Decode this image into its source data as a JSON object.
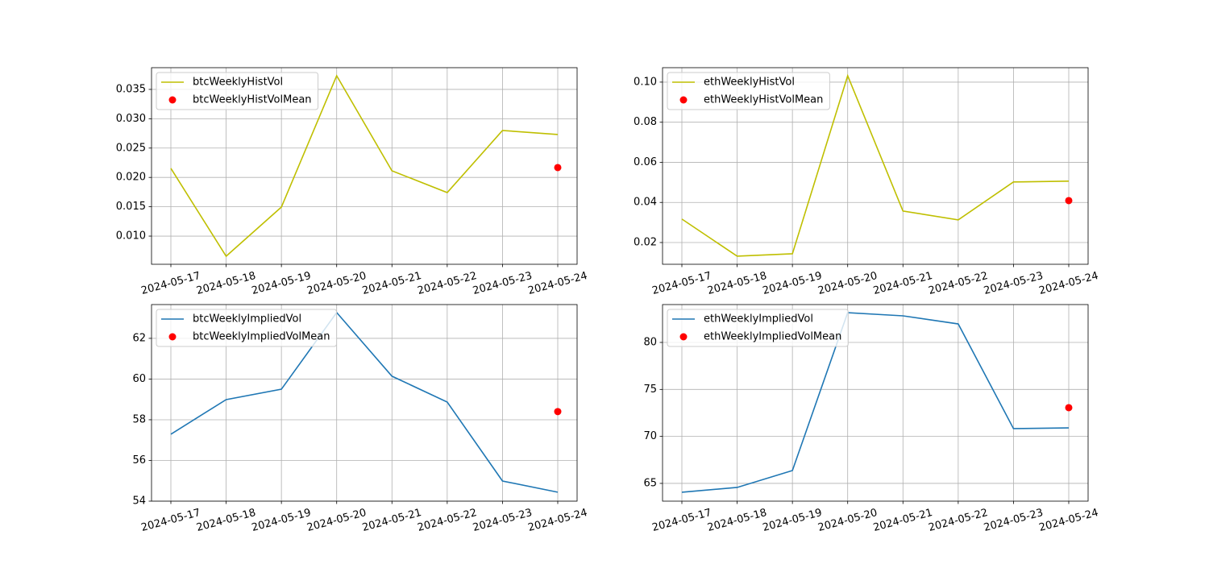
{
  "chart_data": [
    {
      "type": "line",
      "x": [
        "2024-05-17",
        "2024-05-18",
        "2024-05-19",
        "2024-05-20",
        "2024-05-21",
        "2024-05-22",
        "2024-05-23",
        "2024-05-24"
      ],
      "series": [
        {
          "name": "btcWeeklyHistVol",
          "type": "line",
          "color": "#bfbf00",
          "values": [
            0.02154,
            0.00657,
            0.01495,
            0.03733,
            0.02113,
            0.01742,
            0.028,
            0.02731
          ]
        },
        {
          "name": "btcWeeklyHistVolMean",
          "type": "scatter",
          "color": "#ff0000",
          "values": [
            null,
            null,
            null,
            null,
            null,
            null,
            null,
            0.02168
          ]
        }
      ],
      "ylim": [
        0.0052,
        0.0387
      ],
      "yticks": [
        {
          "value": 0.01,
          "label": "0.010"
        },
        {
          "value": 0.015,
          "label": "0.015"
        },
        {
          "value": 0.02,
          "label": "0.020"
        },
        {
          "value": 0.025,
          "label": "0.025"
        },
        {
          "value": 0.03,
          "label": "0.030"
        },
        {
          "value": 0.035,
          "label": "0.035"
        }
      ],
      "grid": true,
      "legend": "upper-left"
    },
    {
      "type": "line",
      "x": [
        "2024-05-17",
        "2024-05-18",
        "2024-05-19",
        "2024-05-20",
        "2024-05-21",
        "2024-05-22",
        "2024-05-23",
        "2024-05-24"
      ],
      "series": [
        {
          "name": "ethWeeklyHistVol",
          "type": "line",
          "color": "#bfbf00",
          "values": [
            0.0317,
            0.0132,
            0.0144,
            0.1032,
            0.0357,
            0.0313,
            0.0502,
            0.0506
          ]
        },
        {
          "name": "ethWeeklyHistVolMean",
          "type": "scatter",
          "color": "#ff0000",
          "values": [
            null,
            null,
            null,
            null,
            null,
            null,
            null,
            0.0409
          ]
        }
      ],
      "ylim": [
        0.00915,
        0.1072
      ],
      "yticks": [
        0.02,
        0.04,
        0.06,
        0.08,
        {
          "value": 0.1,
          "label": "0.10"
        }
      ],
      "grid": true,
      "legend": "upper-left"
    },
    {
      "type": "line",
      "x": [
        "2024-05-17",
        "2024-05-18",
        "2024-05-19",
        "2024-05-20",
        "2024-05-21",
        "2024-05-22",
        "2024-05-23",
        "2024-05-24"
      ],
      "series": [
        {
          "name": "btcWeeklyImpliedVol",
          "type": "line",
          "color": "#1f77b4",
          "values": [
            57.29,
            58.99,
            59.5,
            63.27,
            60.14,
            58.87,
            54.99,
            54.44
          ]
        },
        {
          "name": "btcWeeklyImpliedVolMean",
          "type": "scatter",
          "color": "#ff0000",
          "values": [
            null,
            null,
            null,
            null,
            null,
            null,
            null,
            58.4
          ]
        }
      ],
      "ylim": [
        54,
        63.66
      ],
      "yticks": [
        54,
        56,
        58,
        60,
        62
      ],
      "grid": true,
      "legend": "upper-left"
    },
    {
      "type": "line",
      "x": [
        "2024-05-17",
        "2024-05-18",
        "2024-05-19",
        "2024-05-20",
        "2024-05-21",
        "2024-05-22",
        "2024-05-23",
        "2024-05-24"
      ],
      "series": [
        {
          "name": "ethWeeklyImpliedVol",
          "type": "line",
          "color": "#1f77b4",
          "values": [
            64.06,
            64.57,
            66.37,
            83.17,
            82.83,
            81.97,
            70.83,
            70.91
          ]
        },
        {
          "name": "ethWeeklyImpliedVolMean",
          "type": "scatter",
          "color": "#ff0000",
          "values": [
            null,
            null,
            null,
            null,
            null,
            null,
            null,
            73.06
          ]
        }
      ],
      "ylim": [
        63.11,
        84.03
      ],
      "yticks": [
        65,
        70,
        75,
        80
      ],
      "grid": true,
      "legend": "upper-left"
    }
  ]
}
